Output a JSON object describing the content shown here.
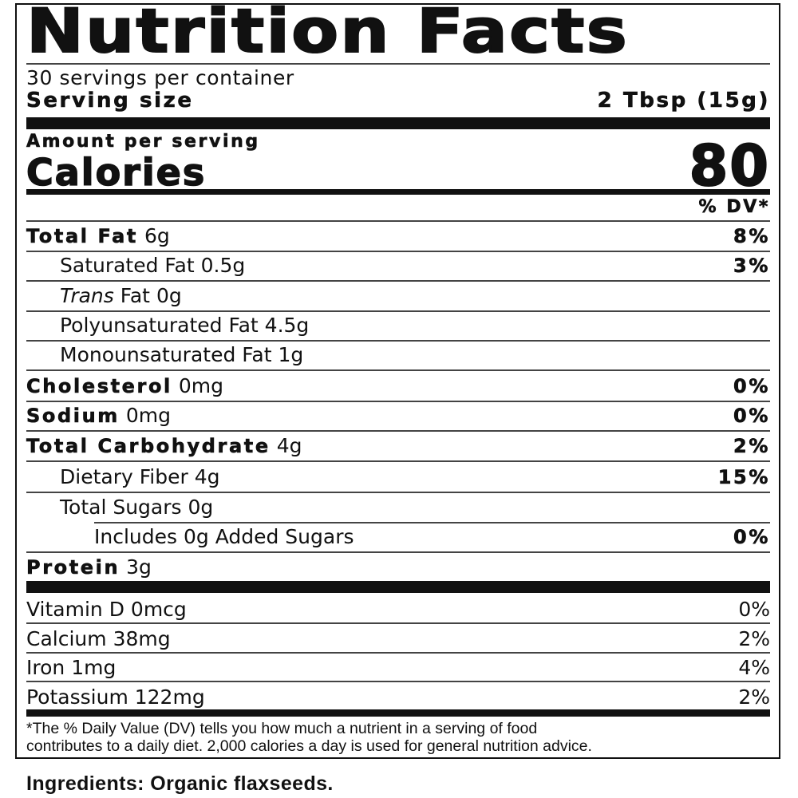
{
  "title": "Nutrition Facts",
  "servings_per_container": "30 servings per container",
  "serving_size": {
    "label": "Serving size",
    "value": "2 Tbsp (15g)"
  },
  "amount_per_serving": "Amount per serving",
  "calories": {
    "label": "Calories",
    "value": "80"
  },
  "dv_header": "% DV*",
  "nutrients": [
    {
      "label": "Total Fat",
      "amount": "6g",
      "dv": "8%"
    },
    {
      "label": "Saturated Fat",
      "amount": "0.5g",
      "dv": "3%"
    },
    {
      "label": "Trans",
      "label_suffix": "Fat",
      "amount": "0g",
      "dv": ""
    },
    {
      "label": "Polyunsaturated Fat",
      "amount": "4.5g",
      "dv": ""
    },
    {
      "label": "Monounsaturated Fat",
      "amount": "1g",
      "dv": ""
    },
    {
      "label": "Cholesterol",
      "amount": "0mg",
      "dv": "0%"
    },
    {
      "label": "Sodium",
      "amount": "0mg",
      "dv": "0%"
    },
    {
      "label": "Total Carbohydrate",
      "amount": "4g",
      "dv": "2%"
    },
    {
      "label": "Dietary Fiber",
      "amount": "4g",
      "dv": "15%"
    },
    {
      "label": "Total Sugars",
      "amount": "0g",
      "dv": ""
    },
    {
      "label": "Includes 0g Added Sugars",
      "amount": "",
      "dv": "0%"
    },
    {
      "label": "Protein",
      "amount": "3g",
      "dv": ""
    }
  ],
  "vitamins": [
    {
      "label": "Vitamin D",
      "amount": "0mcg",
      "dv": "0%"
    },
    {
      "label": "Calcium",
      "amount": "38mg",
      "dv": "2%"
    },
    {
      "label": "Iron",
      "amount": "1mg",
      "dv": "4%"
    },
    {
      "label": "Potassium",
      "amount": "122mg",
      "dv": "2%"
    }
  ],
  "footnote": [
    "*The % Daily Value (DV) tells you how much a nutrient in a serving of food",
    "contributes to a daily diet. 2,000 calories a day is used for general nutrition advice."
  ],
  "ingredients": {
    "label": "Ingredients:",
    "value": "Organic flaxseeds."
  }
}
